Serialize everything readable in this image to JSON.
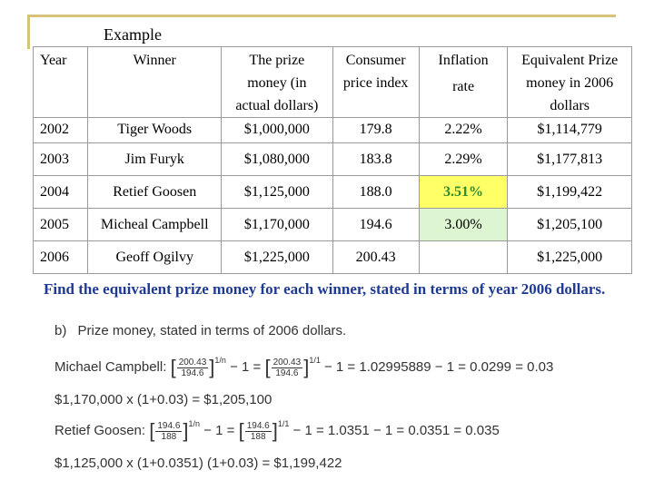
{
  "header": {
    "label": "Example"
  },
  "table": {
    "columns": {
      "year": "Year",
      "winner": "Winner",
      "prize_lines": [
        "The prize",
        "money (in",
        "actual dollars)"
      ],
      "cpi_lines": [
        "Consumer",
        "price index"
      ],
      "inflation_lines": [
        "Inflation",
        "rate"
      ],
      "equivalent_lines": [
        "Equivalent Prize",
        "money in 2006",
        "dollars"
      ]
    },
    "first_row": {
      "year": "2002",
      "winner": "Tiger  Woods",
      "prize": "$1,000,000",
      "cpi": "179.8",
      "inflation": "2.22%",
      "equivalent": "$1,114,779"
    },
    "rows": [
      {
        "year": "2003",
        "winner": "Jim Furyk",
        "prize": "$1,080,000",
        "cpi": "183.8",
        "inflation": "2.29%",
        "equivalent": "$1,177,813"
      },
      {
        "year": "2004",
        "winner": "Retief  Goosen",
        "prize": "$1,125,000",
        "cpi": "188.0",
        "inflation": "3.51%",
        "equivalent": "$1,199,422"
      },
      {
        "year": "2005",
        "winner": "Micheal  Campbell",
        "prize": "$1,170,000",
        "cpi": "194.6",
        "inflation": "3.00%",
        "equivalent": "$1,205,100"
      },
      {
        "year": "2006",
        "winner": "Geoff  Ogilvy",
        "prize": "$1,225,000",
        "cpi": "200.43",
        "inflation": "",
        "equivalent": "$1,225,000"
      }
    ],
    "highlights": {
      "yellow_cell": "3.51%",
      "green_cell": "3.00%"
    },
    "colors": {
      "border": "#9a9a9a",
      "yellow": "#ffff66",
      "green_text": "#2e8b2e",
      "light_green": "#ddf5d0"
    }
  },
  "question": "Find the equivalent prize money for each winner, stated in terms of year 2006 dollars.",
  "work": {
    "part_label": "b)",
    "part_title": "Prize money, stated in terms of 2006 dollars.",
    "campbell": {
      "label": "Michael Campbell:",
      "num": "200.43",
      "den": "194.6",
      "exp1": "1/n",
      "minus1": "− 1 =",
      "exp2": "1/1",
      "rest": "− 1 = 1.02995889 − 1 = 0.0299 = 0.03"
    },
    "calc1": "$1,170,000 x (1+0.03) = $1,205,100",
    "goosen": {
      "label": "Retief Goosen:",
      "num": "194.6",
      "den": "188",
      "exp1": "1/n",
      "minus1": "− 1 =",
      "exp2": "1/1",
      "rest": "− 1 = 1.0351 − 1 = 0.0351 = 0.035"
    },
    "calc2": "$1,125,000 x (1+0.0351) (1+0.03) = $1,199,422"
  }
}
